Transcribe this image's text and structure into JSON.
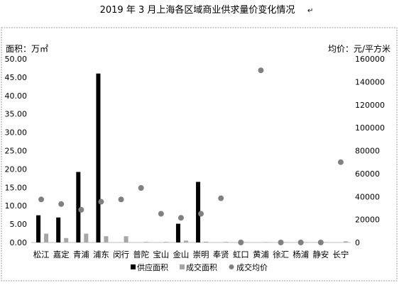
{
  "chart_data": {
    "type": "bar",
    "title": "2019 年 3 月上海各区域商业供求量价变化情况",
    "title_mark": "↵",
    "ylabel_left": "面积：万㎡",
    "ylabel_right": "均价：元/平方米",
    "ylim_left": [
      0,
      50
    ],
    "ylim_right": [
      0,
      160000
    ],
    "yticks_left": [
      "0.00",
      "5.00",
      "10.00",
      "15.00",
      "20.00",
      "25.00",
      "30.00",
      "35.00",
      "40.00",
      "45.00",
      "50.00"
    ],
    "yticks_right": [
      "0",
      "20000",
      "40000",
      "60000",
      "80000",
      "100000",
      "120000",
      "140000",
      "160000"
    ],
    "grid": false,
    "legend_position": "bottom",
    "categories": [
      "松江",
      "嘉定",
      "青浦",
      "浦东",
      "闵行",
      "普陀",
      "宝山",
      "金山",
      "崇明",
      "奉贤",
      "虹口",
      "黄浦",
      "徐汇",
      "杨浦",
      "静安",
      "长宁"
    ],
    "series": [
      {
        "name": "供应面积",
        "kind": "bar",
        "axis": "left",
        "color": "#000000",
        "values": [
          7.4,
          6.8,
          19.2,
          46.0,
          0,
          0,
          0,
          5.1,
          16.5,
          0,
          0,
          0,
          0,
          0,
          0,
          0
        ]
      },
      {
        "name": "成交面积",
        "kind": "bar",
        "axis": "left",
        "color": "#a6a6a6",
        "values": [
          2.4,
          1.2,
          2.4,
          1.7,
          1.7,
          0.15,
          0.15,
          0.5,
          0.2,
          0.15,
          0.1,
          0.1,
          0.1,
          0.1,
          0.1,
          0.3
        ]
      },
      {
        "name": "成交均价",
        "kind": "scatter",
        "axis": "right",
        "color": "#808080",
        "values": [
          37500,
          33500,
          28500,
          35500,
          37500,
          47500,
          25000,
          21500,
          25000,
          38500,
          0,
          150000,
          0,
          0,
          0,
          70000
        ]
      }
    ]
  }
}
